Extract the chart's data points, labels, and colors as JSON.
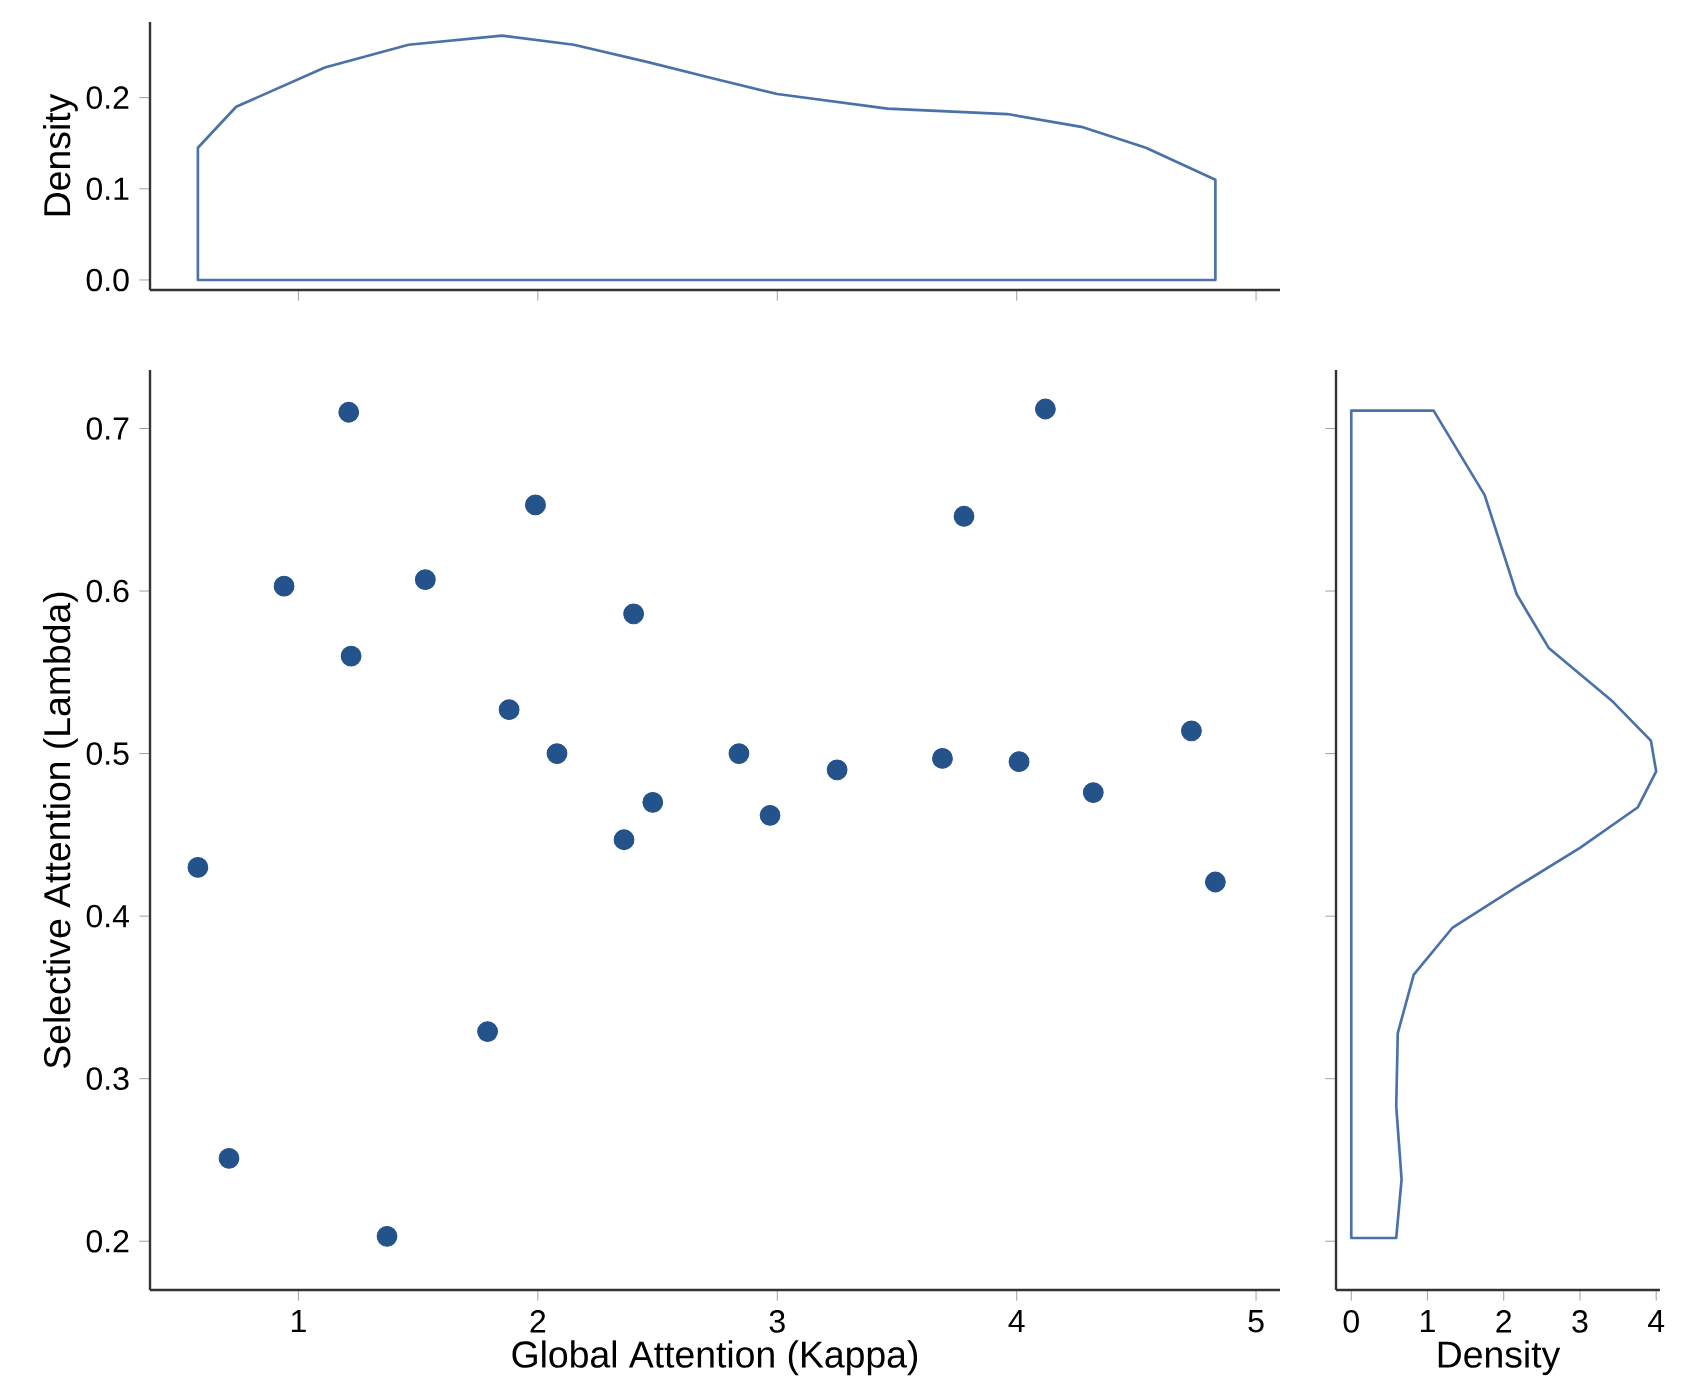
{
  "chart_data": [
    {
      "type": "area",
      "ylabel": "Density",
      "xlim": [
        0.38,
        5.1
      ],
      "ylim": [
        -0.011,
        0.283
      ],
      "xticks": [
        1,
        2,
        3,
        4,
        5
      ],
      "yticks": [
        {
          "value": 0,
          "label": "0.0"
        },
        0.1,
        0.2
      ],
      "tick_labels": "y",
      "series": [
        {
          "color": "#4a72a8",
          "x": [
            0.58,
            0.74,
            1.11,
            1.46,
            1.85,
            2.15,
            2.46,
            2.75,
            3.0,
            3.46,
            3.96,
            4.27,
            4.54,
            4.83
          ],
          "values": [
            0.145,
            0.19,
            0.233,
            0.258,
            0.268,
            0.258,
            0.239,
            0.22,
            0.204,
            0.188,
            0.182,
            0.168,
            0.145,
            0.11
          ]
        }
      ]
    },
    {
      "type": "scatter",
      "xlabel": "Global Attention (Kappa)",
      "ylabel": "Selective Attention (Lambda)",
      "xlim": [
        0.38,
        5.1
      ],
      "ylim": [
        0.17,
        0.736
      ],
      "xticks": [
        1,
        2,
        3,
        4,
        5
      ],
      "yticks": [
        0.2,
        0.3,
        0.4,
        0.5,
        0.6,
        0.7
      ],
      "marker": "circle",
      "series": [
        {
          "color": "#24528a",
          "x": [
            0.58,
            0.71,
            0.94,
            1.21,
            1.22,
            1.37,
            1.53,
            1.79,
            1.88,
            1.99,
            2.08,
            2.36,
            2.4,
            2.48,
            2.84,
            2.97,
            3.25,
            3.69,
            3.78,
            4.01,
            4.12,
            4.32,
            4.73,
            4.83
          ],
          "values": [
            0.43,
            0.251,
            0.603,
            0.71,
            0.56,
            0.203,
            0.607,
            0.329,
            0.527,
            0.653,
            0.5,
            0.447,
            0.586,
            0.47,
            0.5,
            0.462,
            0.49,
            0.497,
            0.646,
            0.495,
            0.712,
            0.476,
            0.514,
            0.421
          ]
        }
      ]
    },
    {
      "type": "area",
      "orientation": "horizontal",
      "xlabel": "Density",
      "xlim": [
        -0.2,
        4.05
      ],
      "ylim": [
        0.17,
        0.736
      ],
      "xticks": [
        0,
        1,
        2,
        3,
        4
      ],
      "yticks": [
        0.2,
        0.3,
        0.4,
        0.5,
        0.6,
        0.7
      ],
      "tick_labels": "x",
      "series": [
        {
          "color": "#4a72a8",
          "x": [
            0.711,
            0.659,
            0.598,
            0.565,
            0.532,
            0.508,
            0.489,
            0.467,
            0.442,
            0.418,
            0.393,
            0.364,
            0.328,
            0.283,
            0.238,
            0.202
          ],
          "values": [
            1.08,
            1.75,
            2.17,
            2.59,
            3.43,
            3.93,
            4.0,
            3.76,
            3.0,
            2.17,
            1.33,
            0.82,
            0.61,
            0.59,
            0.66,
            0.59
          ]
        }
      ]
    }
  ]
}
